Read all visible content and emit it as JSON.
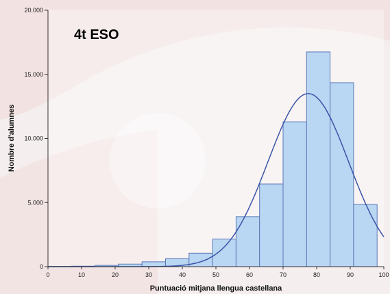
{
  "chart_data": {
    "type": "bar",
    "title": "4t ESO",
    "xlabel": "Puntuació mitjana llengua castellana",
    "ylabel": "Nombre d'alumnes",
    "xlim": [
      0,
      100
    ],
    "ylim": [
      0,
      20000
    ],
    "x_ticks": [
      0,
      10,
      20,
      30,
      40,
      50,
      60,
      70,
      80,
      90,
      100
    ],
    "y_ticks": [
      0,
      5000,
      10000,
      15000,
      20000
    ],
    "y_tick_labels": [
      "0",
      "5.000",
      "10.000",
      "15.000",
      "20.000"
    ],
    "bins": [
      {
        "from": 0,
        "to": 7,
        "value": 20
      },
      {
        "from": 7,
        "to": 14,
        "value": 40
      },
      {
        "from": 14,
        "to": 21,
        "value": 100
      },
      {
        "from": 21,
        "to": 28,
        "value": 200
      },
      {
        "from": 28,
        "to": 35,
        "value": 380
      },
      {
        "from": 35,
        "to": 42,
        "value": 620
      },
      {
        "from": 42,
        "to": 49,
        "value": 1050
      },
      {
        "from": 49,
        "to": 56,
        "value": 2150
      },
      {
        "from": 56,
        "to": 63,
        "value": 3900
      },
      {
        "from": 63,
        "to": 70,
        "value": 6450
      },
      {
        "from": 70,
        "to": 77,
        "value": 11300
      },
      {
        "from": 77,
        "to": 84,
        "value": 16750
      },
      {
        "from": 84,
        "to": 91,
        "value": 14350
      },
      {
        "from": 91,
        "to": 98,
        "value": 4850
      }
    ],
    "normal_curve": {
      "mean": 77.5,
      "sd": 12,
      "peak": 13500
    },
    "grid": false,
    "colors": {
      "bar_fill": "#b9d6f2",
      "bar_stroke": "#5a78b8",
      "curve": "#3a53a8",
      "axis": "#333333",
      "background_watermark": "#d97b7b"
    }
  }
}
